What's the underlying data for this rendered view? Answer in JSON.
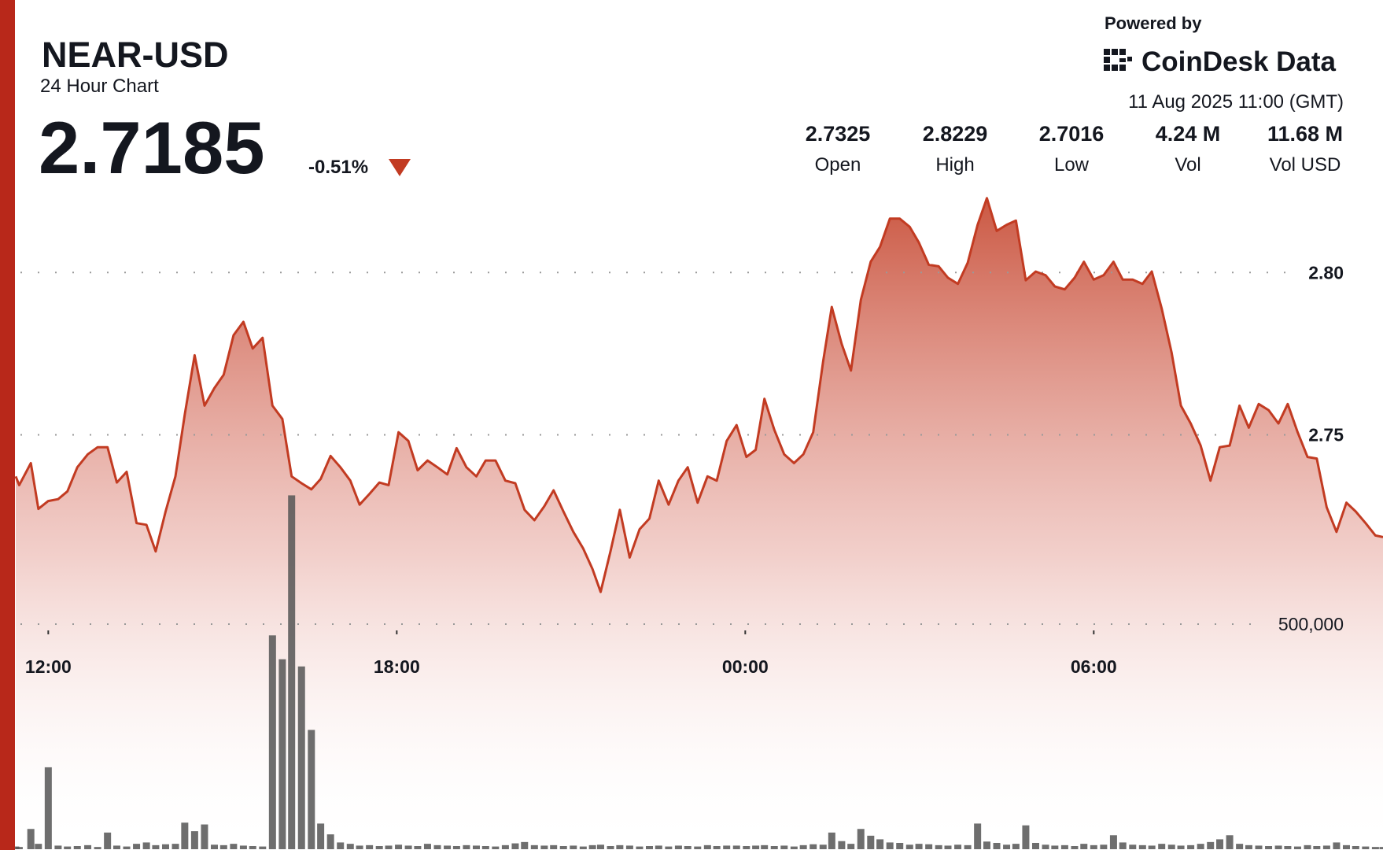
{
  "chart_data": {
    "type": "line",
    "title": "NEAR-USD",
    "subtitle": "24 Hour Chart",
    "price": "2.7185",
    "change": "-0.51%",
    "attribution": "Powered by",
    "brand": "CoinDesk Data",
    "timestamp": "11 Aug 2025 11:00 (GMT)",
    "stats": [
      {
        "value": "2.7325",
        "label": "Open"
      },
      {
        "value": "2.8229",
        "label": "High"
      },
      {
        "value": "2.7016",
        "label": "Low"
      },
      {
        "value": "4.24 M",
        "label": "Vol"
      },
      {
        "value": "11.68 M",
        "label": "Vol USD"
      }
    ],
    "x": [
      -0.56,
      -0.5,
      -0.3,
      -0.17,
      0,
      0.17,
      0.33,
      0.5,
      0.68,
      0.85,
      1.02,
      1.18,
      1.35,
      1.52,
      1.69,
      1.85,
      2.02,
      2.19,
      2.35,
      2.52,
      2.69,
      2.86,
      3.02,
      3.19,
      3.36,
      3.52,
      3.69,
      3.86,
      4.03,
      4.19,
      4.36,
      4.53,
      4.69,
      4.86,
      5.03,
      5.2,
      5.36,
      5.53,
      5.7,
      5.86,
      6.03,
      6.2,
      6.36,
      6.53,
      6.7,
      6.87,
      7.03,
      7.2,
      7.37,
      7.53,
      7.7,
      7.87,
      8.04,
      8.2,
      8.37,
      8.54,
      8.7,
      8.87,
      9.04,
      9.21,
      9.37,
      9.51,
      9.68,
      9.84,
      10.01,
      10.18,
      10.35,
      10.51,
      10.68,
      10.85,
      11.01,
      11.18,
      11.35,
      11.51,
      11.68,
      11.85,
      12.02,
      12.18,
      12.33,
      12.5,
      12.67,
      12.84,
      13,
      13.17,
      13.34,
      13.49,
      13.66,
      13.82,
      13.99,
      14.16,
      14.32,
      14.49,
      14.66,
      14.83,
      14.99,
      15.16,
      15.33,
      15.49,
      15.66,
      15.83,
      16,
      16.16,
      16.33,
      16.5,
      16.66,
      16.83,
      17,
      17.17,
      17.33,
      17.5,
      17.67,
      17.83,
      18,
      18.17,
      18.34,
      18.5,
      18.67,
      18.84,
      19,
      19.17,
      19.34,
      19.5,
      19.67,
      19.84,
      20.01,
      20.17,
      20.34,
      20.51,
      20.67,
      20.84,
      21.01,
      21.18,
      21.34,
      21.51,
      21.68,
      21.84,
      22.01,
      22.18,
      22.35,
      22.51,
      22.68,
      22.85,
      22.98
    ],
    "series": [
      {
        "color": "#c23b22",
        "values": [
          2.7372,
          2.7345,
          2.7413,
          2.7272,
          2.7296,
          2.7302,
          2.7326,
          2.74,
          2.744,
          2.7462,
          2.7462,
          2.7353,
          2.7386,
          2.7228,
          2.7223,
          2.7141,
          2.7264,
          2.7372,
          2.7563,
          2.7745,
          2.759,
          2.7644,
          2.7685,
          2.7807,
          2.7848,
          2.7766,
          2.7799,
          2.759,
          2.7549,
          2.7372,
          2.7351,
          2.7332,
          2.7364,
          2.7435,
          2.74,
          2.7359,
          2.7285,
          2.7318,
          2.7353,
          2.7345,
          2.7508,
          2.7481,
          2.7391,
          2.7421,
          2.74,
          2.7378,
          2.7459,
          2.74,
          2.7372,
          2.7421,
          2.7421,
          2.7359,
          2.7351,
          2.7269,
          2.7237,
          2.728,
          2.7329,
          2.7264,
          2.7201,
          2.715,
          2.7087,
          2.7016,
          2.7141,
          2.7269,
          2.7122,
          2.7209,
          2.7242,
          2.7359,
          2.7285,
          2.7359,
          2.74,
          2.7291,
          2.7372,
          2.7359,
          2.7481,
          2.753,
          2.7432,
          2.7454,
          2.7611,
          2.7516,
          2.744,
          2.7413,
          2.744,
          2.7508,
          2.7726,
          2.7894,
          2.778,
          2.7698,
          2.7916,
          2.8033,
          2.8079,
          2.8166,
          2.8166,
          2.8141,
          2.8092,
          2.8024,
          2.8019,
          2.7984,
          2.7965,
          2.803,
          2.8147,
          2.8229,
          2.8128,
          2.8147,
          2.816,
          2.7976,
          2.8003,
          2.7992,
          2.7957,
          2.7948,
          2.7984,
          2.8033,
          2.7978,
          2.7992,
          2.8033,
          2.7978,
          2.7978,
          2.7965,
          2.8003,
          2.7889,
          2.7753,
          2.759,
          2.7535,
          2.7467,
          2.7359,
          2.7462,
          2.7467,
          2.759,
          2.7522,
          2.7595,
          2.7576,
          2.7535,
          2.7595,
          2.7508,
          2.7432,
          2.7427,
          2.7277,
          2.7201,
          2.7291,
          2.7264,
          2.7228,
          2.719,
          2.7185
        ]
      },
      {
        "type": "bar",
        "axis": "y2",
        "color": "#555555",
        "values": [
          6000,
          5000,
          45000,
          12000,
          182000,
          8000,
          6000,
          7000,
          9000,
          5000,
          37000,
          8000,
          6000,
          12000,
          15000,
          9000,
          11000,
          12000,
          59000,
          40000,
          55000,
          10000,
          9000,
          12000,
          8000,
          7000,
          6000,
          475000,
          422000,
          786000,
          406000,
          265000,
          57000,
          33000,
          15000,
          12000,
          8000,
          9000,
          7000,
          8000,
          10000,
          8000,
          7000,
          12000,
          9000,
          8000,
          7000,
          9000,
          8000,
          7000,
          6000,
          9000,
          13000,
          16000,
          9000,
          8000,
          9000,
          7000,
          8000,
          6000,
          9000,
          10000,
          7000,
          9000,
          8000,
          6000,
          7000,
          8000,
          6000,
          8000,
          7000,
          6000,
          9000,
          7000,
          8000,
          8000,
          7000,
          8000,
          9000,
          7000,
          8000,
          6000,
          9000,
          11000,
          10000,
          37000,
          18000,
          12000,
          45000,
          30000,
          22000,
          15000,
          14000,
          10000,
          12000,
          11000,
          9000,
          8000,
          10000,
          9000,
          57000,
          17000,
          14000,
          10000,
          12000,
          53000,
          14000,
          10000,
          8000,
          9000,
          7000,
          12000,
          9000,
          10000,
          31000,
          15000,
          10000,
          9000,
          8000,
          12000,
          10000,
          8000,
          9000,
          12000,
          16000,
          22000,
          31000,
          12000,
          9000,
          8000,
          7000,
          8000,
          7000,
          6000,
          9000,
          7000,
          8000,
          15000,
          9000,
          7000,
          6000,
          5000,
          5000
        ]
      }
    ],
    "xlim": [
      -0.56,
      22.98
    ],
    "xticks": [
      {
        "value": 0,
        "label": "12:00"
      },
      {
        "value": 6,
        "label": "18:00"
      },
      {
        "value": 12,
        "label": "00:00"
      },
      {
        "value": 18,
        "label": "06:00"
      }
    ],
    "ylim": [
      2.65,
      2.85
    ],
    "yticks": [
      {
        "value": 2.75,
        "label": "2.75"
      },
      {
        "value": 2.8,
        "label": "2.80"
      }
    ],
    "y2lim": [
      0,
      1000000
    ],
    "y2ticks": [
      {
        "value": 500000,
        "label": "500,000"
      }
    ],
    "grid": true
  }
}
